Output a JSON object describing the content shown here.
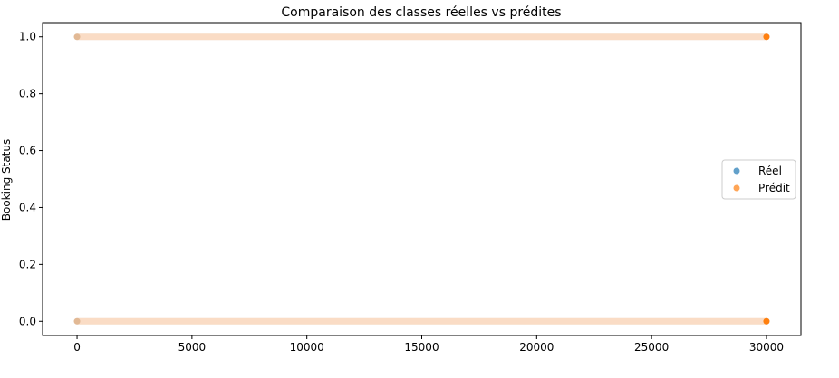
{
  "chart_data": {
    "type": "scatter",
    "title": "Comparaison des classes réelles vs prédites",
    "xlabel": "",
    "ylabel": "Booking Status",
    "xlim": [
      -1500,
      31500
    ],
    "ylim": [
      -0.05,
      1.05
    ],
    "xticks": [
      0,
      5000,
      10000,
      15000,
      20000,
      25000,
      30000
    ],
    "yticks": [
      0.0,
      0.2,
      0.4,
      0.6,
      0.8,
      1.0
    ],
    "ytick_labels": [
      "0.0",
      "0.2",
      "0.4",
      "0.6",
      "0.8",
      "1.0"
    ],
    "grid": false,
    "legend_position": "center-right",
    "colors": {
      "reel": "#1f77b4",
      "predit": "#ff7f0e",
      "band": "#fbd9bf"
    },
    "series": [
      {
        "name": "Réel",
        "color": "#1f77b4",
        "points": [
          [
            0,
            0
          ],
          [
            30000,
            0
          ],
          [
            0,
            1
          ],
          [
            30000,
            1
          ]
        ],
        "bands": [
          {
            "y": 0,
            "x_start": 0,
            "x_end": 30000
          },
          {
            "y": 1,
            "x_start": 0,
            "x_end": 30000
          }
        ]
      },
      {
        "name": "Prédit",
        "color": "#ff7f0e",
        "points": [
          [
            0,
            0
          ],
          [
            30000,
            0
          ],
          [
            0,
            1
          ],
          [
            30000,
            1
          ]
        ],
        "bands": [
          {
            "y": 0,
            "x_start": 0,
            "x_end": 30000
          },
          {
            "y": 1,
            "x_start": 0,
            "x_end": 30000
          }
        ]
      }
    ]
  }
}
